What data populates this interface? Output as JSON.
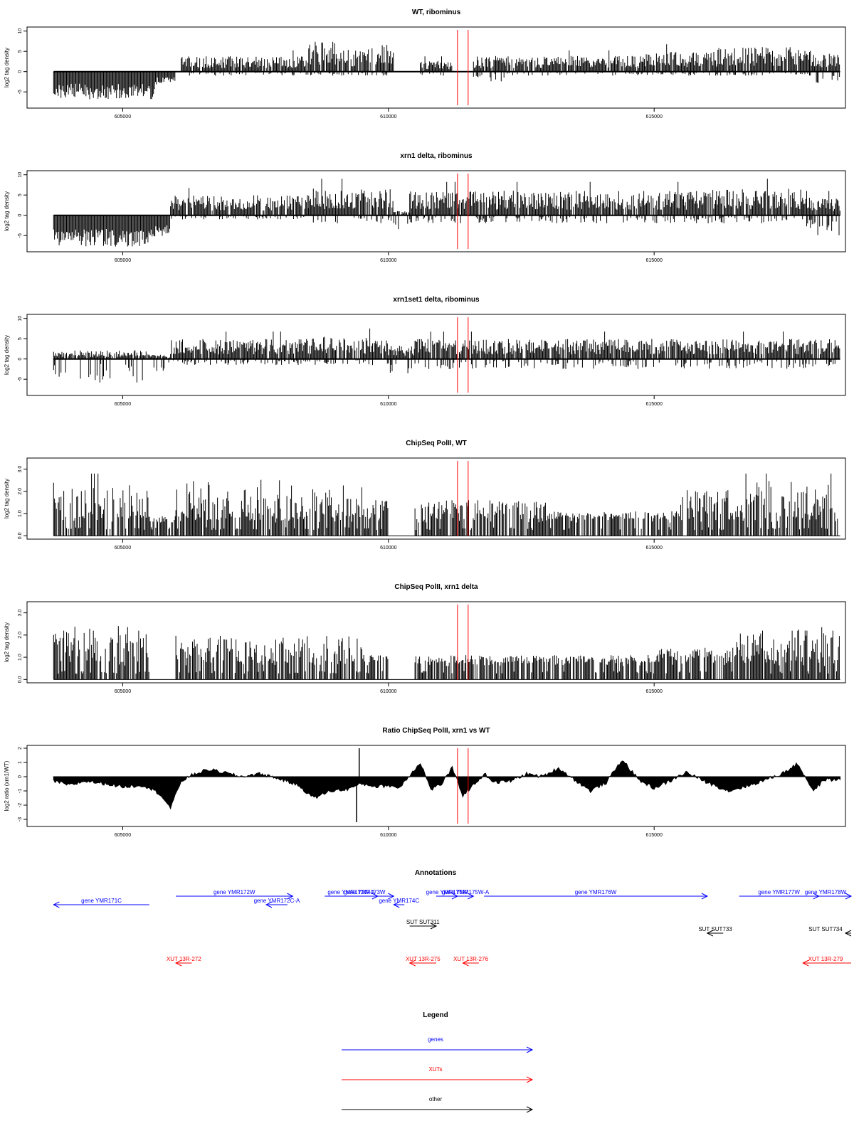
{
  "chart_data": [
    {
      "type": "bar",
      "title": "WT, ribominus",
      "ylabel": "log2 tag density",
      "ylim": [
        -9,
        11
      ],
      "yticks": [
        -5,
        0,
        5,
        10
      ],
      "xlim": [
        603200,
        618600
      ],
      "xticks": [
        605000,
        610000,
        615000
      ],
      "markers": [
        611300,
        611500
      ],
      "segments": [
        {
          "x": [
            603700,
            605600
          ],
          "pos": 0,
          "neg": -6.5
        },
        {
          "x": [
            605600,
            606000
          ],
          "pos": 0,
          "neg": -3
        },
        {
          "x": [
            606100,
            608500
          ],
          "pos": 3.5,
          "neg": -1
        },
        {
          "x": [
            608500,
            609000
          ],
          "pos": 7,
          "neg": -1
        },
        {
          "x": [
            609000,
            609500
          ],
          "pos": 5,
          "neg": -1
        },
        {
          "x": [
            609500,
            610100
          ],
          "pos": 6,
          "neg": -1
        },
        {
          "x": [
            610600,
            611200
          ],
          "pos": 2.5,
          "neg": -1
        },
        {
          "x": [
            611600,
            612200
          ],
          "pos": 3.5,
          "neg": -2.5
        },
        {
          "x": [
            612200,
            614800
          ],
          "pos": 3.5,
          "neg": -1
        },
        {
          "x": [
            614800,
            616200
          ],
          "pos": 4.5,
          "neg": -1
        },
        {
          "x": [
            616200,
            618000
          ],
          "pos": 5.5,
          "neg": -1
        },
        {
          "x": [
            618000,
            618500
          ],
          "pos": 4,
          "neg": -3
        }
      ]
    },
    {
      "type": "bar",
      "title": "xrn1 delta, ribominus",
      "ylabel": "log2 tag density",
      "ylim": [
        -9,
        11
      ],
      "yticks": [
        -5,
        0,
        5,
        10
      ],
      "xlim": [
        603200,
        618600
      ],
      "xticks": [
        605000,
        610000,
        615000
      ],
      "markers": [
        611300,
        611500
      ],
      "segments": [
        {
          "x": [
            603700,
            605500
          ],
          "pos": 0,
          "neg": -7.5
        },
        {
          "x": [
            605500,
            605900
          ],
          "pos": 0,
          "neg": -5
        },
        {
          "x": [
            605900,
            608500
          ],
          "pos": 4.5,
          "neg": -1
        },
        {
          "x": [
            608500,
            610100
          ],
          "pos": 6,
          "neg": -2
        },
        {
          "x": [
            610100,
            610400
          ],
          "pos": 1,
          "neg": -3.5
        },
        {
          "x": [
            610400,
            616000
          ],
          "pos": 5.5,
          "neg": -2
        },
        {
          "x": [
            616000,
            617800
          ],
          "pos": 6,
          "neg": -2
        },
        {
          "x": [
            617800,
            618500
          ],
          "pos": 4,
          "neg": -5
        }
      ]
    },
    {
      "type": "bar",
      "title": "xrn1set1 delta, ribominus",
      "ylabel": "log2 tag density",
      "ylim": [
        -9,
        11
      ],
      "yticks": [
        -5,
        0,
        5,
        10
      ],
      "xlim": [
        603200,
        618600
      ],
      "xticks": [
        605000,
        610000,
        615000
      ],
      "markers": [
        611300,
        611500
      ],
      "segments": [
        {
          "x": [
            603700,
            605500
          ],
          "pos": 2,
          "neg": -6
        },
        {
          "x": [
            605500,
            605900
          ],
          "pos": 1,
          "neg": -3
        },
        {
          "x": [
            605900,
            608500
          ],
          "pos": 4.5,
          "neg": -1.5
        },
        {
          "x": [
            608500,
            610000
          ],
          "pos": 5,
          "neg": -1.5
        },
        {
          "x": [
            610000,
            610500
          ],
          "pos": 3,
          "neg": -4
        },
        {
          "x": [
            610500,
            618500
          ],
          "pos": 4.5,
          "neg": -2.5
        }
      ]
    },
    {
      "type": "bar",
      "title": "ChipSeq PolII, WT",
      "ylabel": "log2 tag density",
      "ylim": [
        -0.15,
        3.5
      ],
      "yticks": [
        0.0,
        1.0,
        2.0,
        3.0
      ],
      "yticklabels": [
        "0.0",
        "1.0",
        "2.0",
        "3.0"
      ],
      "xlim": [
        603200,
        618600
      ],
      "xticks": [
        605000,
        610000,
        615000
      ],
      "markers": [
        611300,
        611500
      ],
      "segments": [
        {
          "x": [
            603700,
            605500
          ],
          "pos": 2.8,
          "neg": 0
        },
        {
          "x": [
            605500,
            606000
          ],
          "pos": 0.8,
          "neg": 0
        },
        {
          "x": [
            606000,
            609500
          ],
          "pos": 2.3,
          "neg": 0
        },
        {
          "x": [
            609500,
            610000
          ],
          "pos": 1.5,
          "neg": 0
        },
        {
          "x": [
            610500,
            613000
          ],
          "pos": 1.5,
          "neg": 0
        },
        {
          "x": [
            613000,
            615500
          ],
          "pos": 1.0,
          "neg": 0
        },
        {
          "x": [
            615500,
            616500
          ],
          "pos": 2.0,
          "neg": 0
        },
        {
          "x": [
            616500,
            618500
          ],
          "pos": 2.8,
          "neg": 0
        }
      ]
    },
    {
      "type": "bar",
      "title": "ChipSeq PolII, xrn1 delta",
      "ylabel": "log2 tag density",
      "ylim": [
        -0.15,
        3.5
      ],
      "yticks": [
        0.0,
        1.0,
        2.0,
        3.0
      ],
      "yticklabels": [
        "0.0",
        "1.0",
        "2.0",
        "3.0"
      ],
      "xlim": [
        603200,
        618600
      ],
      "xticks": [
        605000,
        610000,
        615000
      ],
      "markers": [
        611300,
        611500
      ],
      "segments": [
        {
          "x": [
            603700,
            605500
          ],
          "pos": 2.2,
          "neg": 0
        },
        {
          "x": [
            606000,
            609500
          ],
          "pos": 1.8,
          "neg": 0
        },
        {
          "x": [
            609500,
            610000
          ],
          "pos": 1.0,
          "neg": 0
        },
        {
          "x": [
            610500,
            615000
          ],
          "pos": 1.0,
          "neg": 0
        },
        {
          "x": [
            615000,
            616500
          ],
          "pos": 1.3,
          "neg": 0
        },
        {
          "x": [
            616500,
            618500
          ],
          "pos": 2.2,
          "neg": 0
        }
      ]
    },
    {
      "type": "area",
      "title": "Ratio ChipSeq PolII, xrn1 vs WT",
      "ylabel": "log2 ratio (xrn1/WT)",
      "ylim": [
        -3.5,
        2.2
      ],
      "yticks": [
        -3,
        -2,
        -1,
        0,
        1,
        2
      ],
      "xlim": [
        603200,
        618600
      ],
      "xticks": [
        605000,
        610000,
        615000
      ],
      "markers": [
        611300,
        611500
      ],
      "x": [
        603700,
        604000,
        604300,
        604700,
        605000,
        605400,
        605700,
        605900,
        606100,
        606300,
        606600,
        606900,
        607200,
        607600,
        608000,
        608300,
        608600,
        608900,
        609200,
        609500,
        609800,
        610000,
        610200,
        610400,
        610600,
        610800,
        611000,
        611200,
        611400,
        611600,
        611800,
        612000,
        612300,
        612600,
        612900,
        613200,
        613500,
        613800,
        614100,
        614400,
        614700,
        615000,
        615300,
        615600,
        616000,
        616400,
        616800,
        617100,
        617400,
        617700,
        618000,
        618200,
        618500
      ],
      "y": [
        -0.3,
        -0.6,
        -0.3,
        -0.5,
        -0.7,
        -0.6,
        -1.2,
        -2.2,
        -0.3,
        0.1,
        0.5,
        0.3,
        0.0,
        0.2,
        -0.2,
        -0.6,
        -1.5,
        -1.0,
        -0.9,
        -0.5,
        -0.7,
        -0.6,
        -0.8,
        0.1,
        1.0,
        -0.9,
        -0.5,
        0.6,
        -1.3,
        -0.6,
        0.2,
        -0.4,
        -0.3,
        0.2,
        0.0,
        0.6,
        -0.2,
        -1.0,
        -0.4,
        1.2,
        -0.2,
        -0.8,
        -0.3,
        0.3,
        -0.4,
        -1.0,
        -0.6,
        -0.2,
        0.2,
        0.9,
        -1.0,
        -0.2,
        -0.2
      ],
      "spikes": [
        [
          609400,
          -3.2
        ],
        [
          609450,
          2.0
        ]
      ]
    }
  ],
  "annotations": {
    "title": "Annotations",
    "xlim": [
      603200,
      618600
    ],
    "features": [
      {
        "label": "gene YMR171C",
        "kind": "genes",
        "from": 605500,
        "to": 603700,
        "row": 2
      },
      {
        "label": "gene YMR172W",
        "kind": "genes",
        "from": 606000,
        "to": 608200,
        "row": 1
      },
      {
        "label": "gene YMR172C-A",
        "kind": "genes",
        "from": 608100,
        "to": 607700,
        "row": 2
      },
      {
        "label": "gene YMR172W-A",
        "kind": "genes",
        "from": 608800,
        "to": 609800,
        "row": 1
      },
      {
        "label": "gene YMR173W",
        "kind": "genes",
        "from": 609000,
        "to": 610100,
        "row": 1
      },
      {
        "label": "gene YMR174C",
        "kind": "genes",
        "from": 610300,
        "to": 610100,
        "row": 2
      },
      {
        "label": "gene YMR175W",
        "kind": "genes",
        "from": 610900,
        "to": 611300,
        "row": 1
      },
      {
        "label": "gene YMR175W-A",
        "kind": "genes",
        "from": 611300,
        "to": 611600,
        "row": 1
      },
      {
        "label": "gene YMR176W",
        "kind": "genes",
        "from": 611800,
        "to": 616000,
        "row": 1
      },
      {
        "label": "gene YMR177W",
        "kind": "genes",
        "from": 616600,
        "to": 618100,
        "row": 1
      },
      {
        "label": "gene YMR178W",
        "kind": "genes",
        "from": 618100,
        "to": 618900,
        "row": 1
      },
      {
        "label": "SUT SUT311",
        "kind": "other",
        "from": 610400,
        "to": 610900,
        "row": 3
      },
      {
        "label": "SUT SUT733",
        "kind": "other",
        "from": 616300,
        "to": 616000,
        "row": 4
      },
      {
        "label": "SUT SUT734",
        "kind": "other",
        "from": 618900,
        "to": 618600,
        "row": 4
      },
      {
        "label": "XUT 13R-272",
        "kind": "XUTs",
        "from": 606300,
        "to": 606000,
        "row": 5
      },
      {
        "label": "XUT 13R-275",
        "kind": "XUTs",
        "from": 610900,
        "to": 610400,
        "row": 5
      },
      {
        "label": "XUT 13R-276",
        "kind": "XUTs",
        "from": 611700,
        "to": 611400,
        "row": 5
      },
      {
        "label": "XUT 13R-279",
        "kind": "XUTs",
        "from": 618900,
        "to": 617800,
        "row": 5
      }
    ]
  },
  "legend": {
    "title": "Legend",
    "items": [
      {
        "label": "genes",
        "color": "#0000ff"
      },
      {
        "label": "XUTs",
        "color": "#ff0000"
      },
      {
        "label": "other",
        "color": "#000000"
      }
    ]
  },
  "colors": {
    "genes": "#0000ff",
    "XUTs": "#ff0000",
    "other": "#000000",
    "marker": "#ff0000"
  }
}
